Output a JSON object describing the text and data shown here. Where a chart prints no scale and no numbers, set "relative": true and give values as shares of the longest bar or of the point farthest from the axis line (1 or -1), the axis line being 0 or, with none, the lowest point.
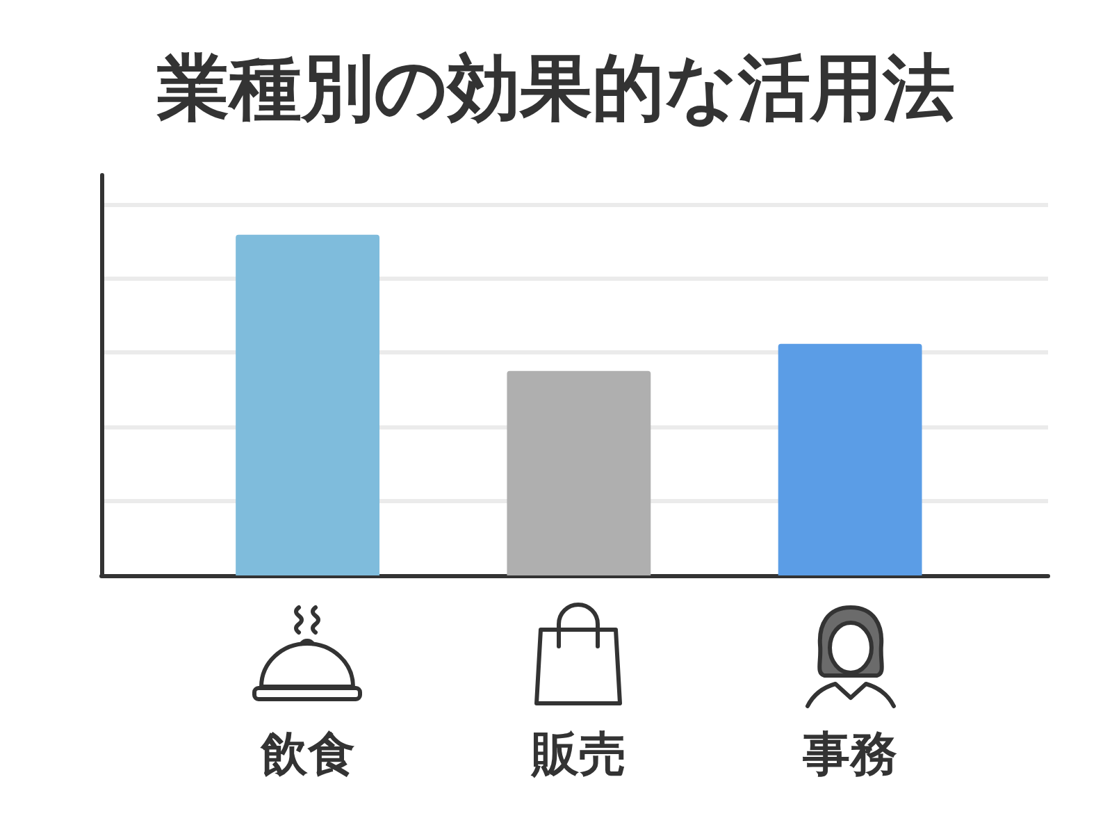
{
  "chart_data": {
    "type": "bar",
    "title": "業種別の効果的な活用法",
    "categories": [
      "飲食",
      "販売",
      "事務"
    ],
    "values": [
      1,
      0.6,
      0.68
    ],
    "colors": [
      "#7fbcdc",
      "#afafaf",
      "#5b9de6"
    ],
    "relative": true,
    "grid": "y"
  }
}
